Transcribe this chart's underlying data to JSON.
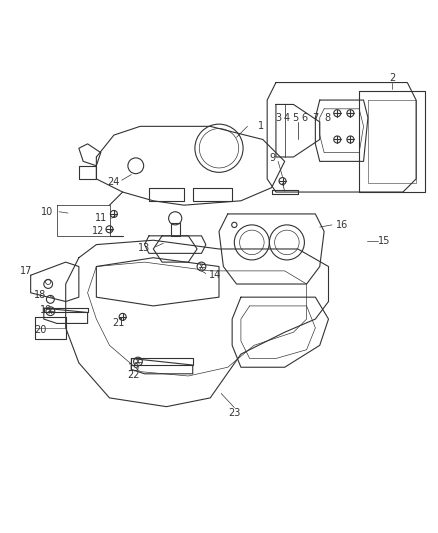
{
  "background_color": "#ffffff",
  "fig_width": 4.38,
  "fig_height": 5.33,
  "dpi": 100,
  "line_color": "#333333",
  "label_fontsize": 7
}
